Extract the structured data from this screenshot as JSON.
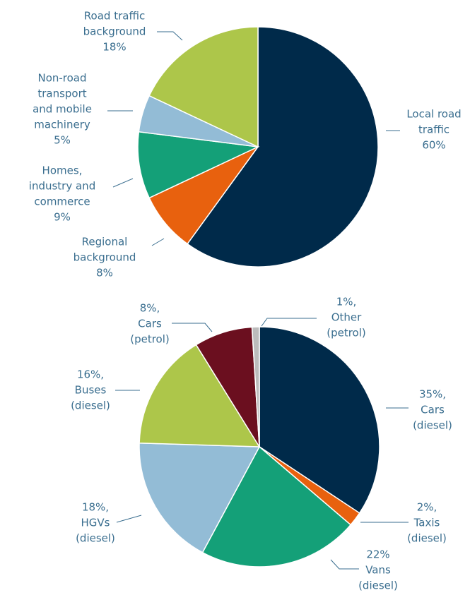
{
  "chart_data": [
    {
      "type": "pie",
      "categories": [
        [
          "Local road",
          "traffic"
        ],
        [
          "Regional",
          "background"
        ],
        [
          "Homes,",
          "industry and",
          "commerce"
        ],
        [
          "Non-road",
          "transport",
          "and mobile",
          "machinery"
        ],
        [
          "Road traffic",
          "background"
        ]
      ],
      "values": [
        60,
        8,
        9,
        5,
        18
      ],
      "value_labels": [
        "60%",
        "8%",
        "9%",
        "5%",
        "18%"
      ],
      "colors": [
        "#002a4a",
        "#e8610e",
        "#14a078",
        "#93bcd6",
        "#adc64a"
      ]
    },
    {
      "type": "pie",
      "categories": [
        [
          "Cars",
          "(diesel)"
        ],
        [
          "Taxis",
          "(diesel)"
        ],
        [
          "Vans",
          "(diesel)"
        ],
        [
          "HGVs",
          "(diesel)"
        ],
        [
          "Buses",
          "(diesel)"
        ],
        [
          "Cars",
          "(petrol)"
        ],
        [
          "Other",
          "(petrol)"
        ]
      ],
      "values": [
        35,
        2,
        22,
        18,
        16,
        8,
        1
      ],
      "value_labels": [
        "35%,",
        "2%,",
        "22%",
        "18%,",
        "16%,",
        "8%,",
        "1%,"
      ],
      "colors": [
        "#002a4a",
        "#e8610e",
        "#14a078",
        "#93bcd6",
        "#adc64a",
        "#6b0f1f",
        "#bcbcbc"
      ]
    }
  ]
}
